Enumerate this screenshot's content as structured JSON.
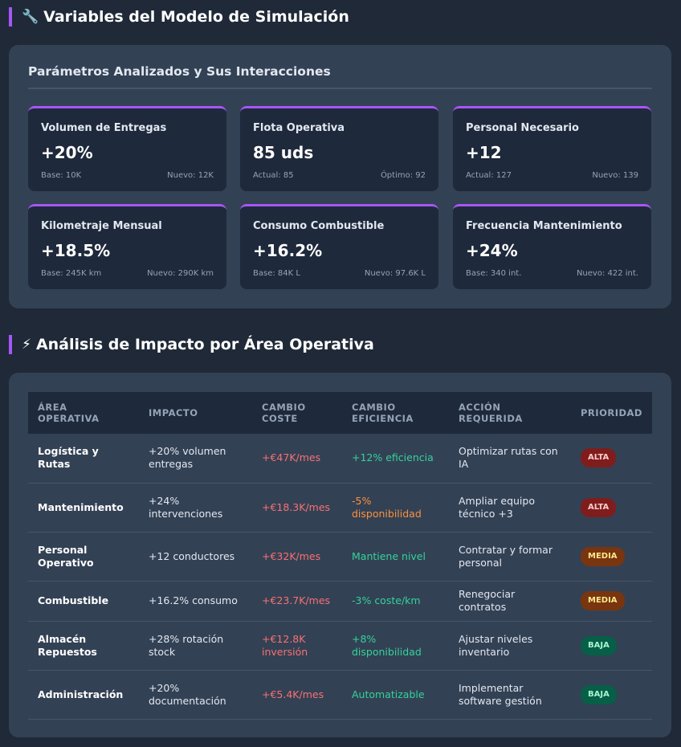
{
  "section1": {
    "icon": "wrench-icon",
    "emoji": "🔧",
    "title": "Variables del Modelo de Simulación",
    "heading": "Parámetros Analizados y Sus Interacciones",
    "cards": [
      {
        "label": "Volumen de Entregas",
        "value": "+20%",
        "left": "Base: 10K",
        "right": "Nuevo: 12K"
      },
      {
        "label": "Flota Operativa",
        "value": "85 uds",
        "left": "Actual: 85",
        "right": "Óptimo: 92"
      },
      {
        "label": "Personal Necesario",
        "value": "+12",
        "left": "Actual: 127",
        "right": "Nuevo: 139"
      },
      {
        "label": "Kilometraje Mensual",
        "value": "+18.5%",
        "left": "Base: 245K km",
        "right": "Nuevo: 290K km"
      },
      {
        "label": "Consumo Combustible",
        "value": "+16.2%",
        "left": "Base: 84K L",
        "right": "Nuevo: 97.6K L"
      },
      {
        "label": "Frecuencia Mantenimiento",
        "value": "+24%",
        "left": "Base: 340 int.",
        "right": "Nuevo: 422 int."
      }
    ]
  },
  "section2": {
    "icon": "lightning-icon",
    "emoji": "⚡",
    "title": "Análisis de Impacto por Área Operativa",
    "headers": [
      "ÁREA OPERATIVA",
      "IMPACTO",
      "CAMBIO COSTE",
      "CAMBIO EFICIENCIA",
      "ACCIÓN REQUERIDA",
      "PRIORIDAD"
    ],
    "rows": [
      {
        "area": "Logística y Rutas",
        "impact": "+20% volumen entregas",
        "cost": "+€47K/mes",
        "eff": "+12% eficiencia",
        "eff_tone": "good",
        "action": "Optimizar rutas con IA",
        "priority": "ALTA",
        "level": "alta"
      },
      {
        "area": "Mantenimiento",
        "impact": "+24% intervenciones",
        "cost": "+€18.3K/mes",
        "eff": "-5% disponibilidad",
        "eff_tone": "warn",
        "action": "Ampliar equipo técnico +3",
        "priority": "ALTA",
        "level": "alta"
      },
      {
        "area": "Personal Operativo",
        "impact": "+12 conductores",
        "cost": "+€32K/mes",
        "eff": "Mantiene nivel",
        "eff_tone": "good",
        "action": "Contratar y formar personal",
        "priority": "MEDIA",
        "level": "media"
      },
      {
        "area": "Combustible",
        "impact": "+16.2% consumo",
        "cost": "+€23.7K/mes",
        "eff": "-3% coste/km",
        "eff_tone": "good",
        "action": "Renegociar contratos",
        "priority": "MEDIA",
        "level": "media"
      },
      {
        "area": "Almacén Repuestos",
        "impact": "+28% rotación stock",
        "cost": "+€12.8K inversión",
        "eff": "+8% disponibilidad",
        "eff_tone": "good",
        "action": "Ajustar niveles inventario",
        "priority": "BAJA",
        "level": "baja"
      },
      {
        "area": "Administración",
        "impact": "+20% documentación",
        "cost": "+€5.4K/mes",
        "eff": "Automatizable",
        "eff_tone": "good",
        "action": "Implementar software gestión",
        "priority": "BAJA",
        "level": "baja"
      }
    ]
  }
}
